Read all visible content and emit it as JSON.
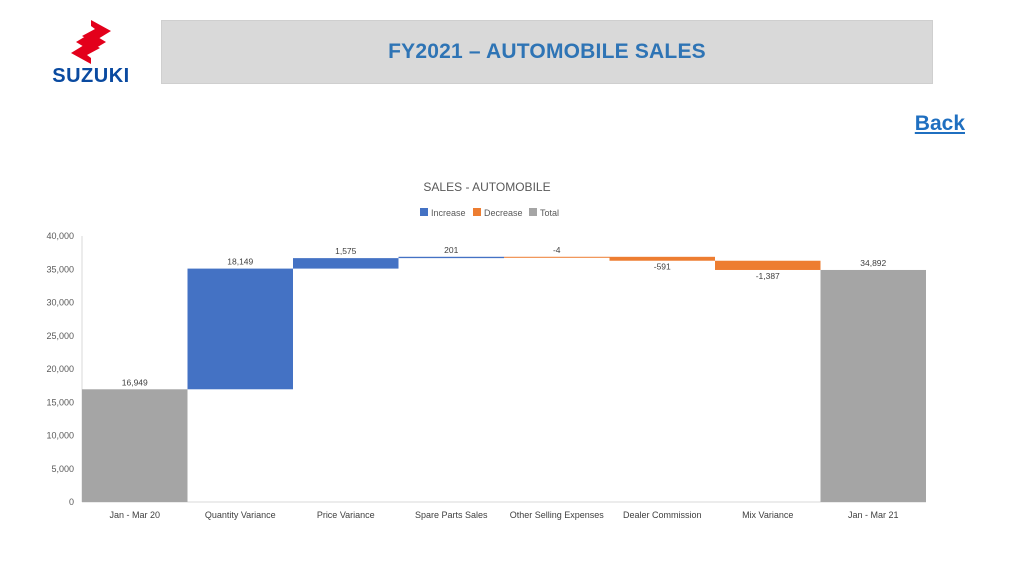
{
  "header": {
    "title": "FY2021 – AUTOMOBILE SALES"
  },
  "nav": {
    "back_label": "Back"
  },
  "logo": {
    "wordmark": "SUZUKI",
    "color": "#e3001b",
    "wordmark_color": "#0a4aa0"
  },
  "chart_data": {
    "type": "waterfall",
    "title": "SALES - AUTOMOBILE",
    "legend": {
      "position": "top",
      "items": [
        {
          "name": "Increase",
          "color": "#4472c4"
        },
        {
          "name": "Decrease",
          "color": "#ed7d31"
        },
        {
          "name": "Total",
          "color": "#a5a5a5"
        }
      ]
    },
    "ylim": [
      0,
      40000
    ],
    "yticks": [
      0,
      5000,
      10000,
      15000,
      20000,
      25000,
      30000,
      35000,
      40000
    ],
    "ytick_labels": [
      "0",
      "5,000",
      "10,000",
      "15,000",
      "20,000",
      "25,000",
      "30,000",
      "35,000",
      "40,000"
    ],
    "categories": [
      "Jan - Mar 20",
      "Quantity Variance",
      "Price Variance",
      "Spare Parts Sales",
      "Other Selling Expenses",
      "Dealer Commission",
      "Mix Variance",
      "Jan - Mar 21"
    ],
    "values": [
      16949,
      18149,
      1575,
      201,
      -4,
      -591,
      -1387,
      34892
    ],
    "kinds": [
      "total",
      "increase",
      "increase",
      "increase",
      "decrease",
      "decrease",
      "decrease",
      "total"
    ],
    "data_labels": [
      "16,949",
      "18,149",
      "1,575",
      "201",
      "-4",
      "-591",
      "-1,387",
      "34,892"
    ],
    "grid": false
  }
}
